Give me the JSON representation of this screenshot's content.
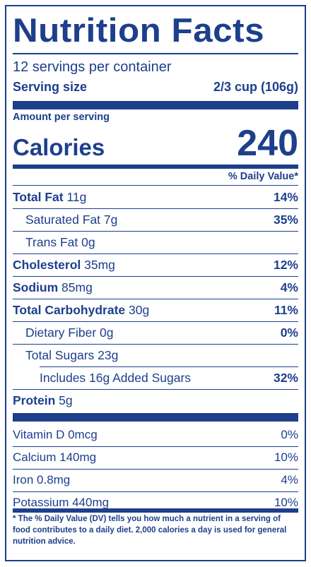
{
  "title": "Nutrition Facts",
  "servings_per_container": "12 servings per container",
  "serving_size": {
    "label": "Serving size",
    "value": "2/3 cup (106g)"
  },
  "amount_per_serving": "Amount per serving",
  "calories": {
    "label": "Calories",
    "value": "240"
  },
  "daily_value_header": "% Daily Value*",
  "nutrients": [
    {
      "name": "Total Fat",
      "amount": " 11g",
      "dv": "14%"
    },
    {
      "name": "Saturated Fat 7g",
      "dv": "35%"
    },
    {
      "name": "Trans Fat 0g",
      "dv": ""
    },
    {
      "name": "Cholesterol",
      "amount": " 35mg",
      "dv": "12%"
    },
    {
      "name": "Sodium",
      "amount": " 85mg",
      "dv": "4%"
    },
    {
      "name": "Total Carbohydrate",
      "amount": " 30g",
      "dv": "11%"
    },
    {
      "name": "Dietary Fiber 0g",
      "dv": "0%"
    },
    {
      "name": "Total Sugars 23g",
      "dv": ""
    },
    {
      "name": "Includes 16g Added Sugars",
      "dv": "32%"
    },
    {
      "name": "Protein",
      "amount": " 5g",
      "dv": ""
    }
  ],
  "vitamins": [
    {
      "name": "Vitamin D 0mcg",
      "dv": "0%"
    },
    {
      "name": "Calcium 140mg",
      "dv": "10%"
    },
    {
      "name": "Iron 0.8mg",
      "dv": "4%"
    },
    {
      "name": "Potassium 440mg",
      "dv": "10%"
    }
  ],
  "footnote": "* The % Daily Value (DV) tells you how much a nutrient in a serving of food contributes to a daily diet. 2,000 calories a day is used for general nutrition advice.",
  "colors": {
    "ink": "#1d3f8c",
    "background": "#ffffff"
  }
}
